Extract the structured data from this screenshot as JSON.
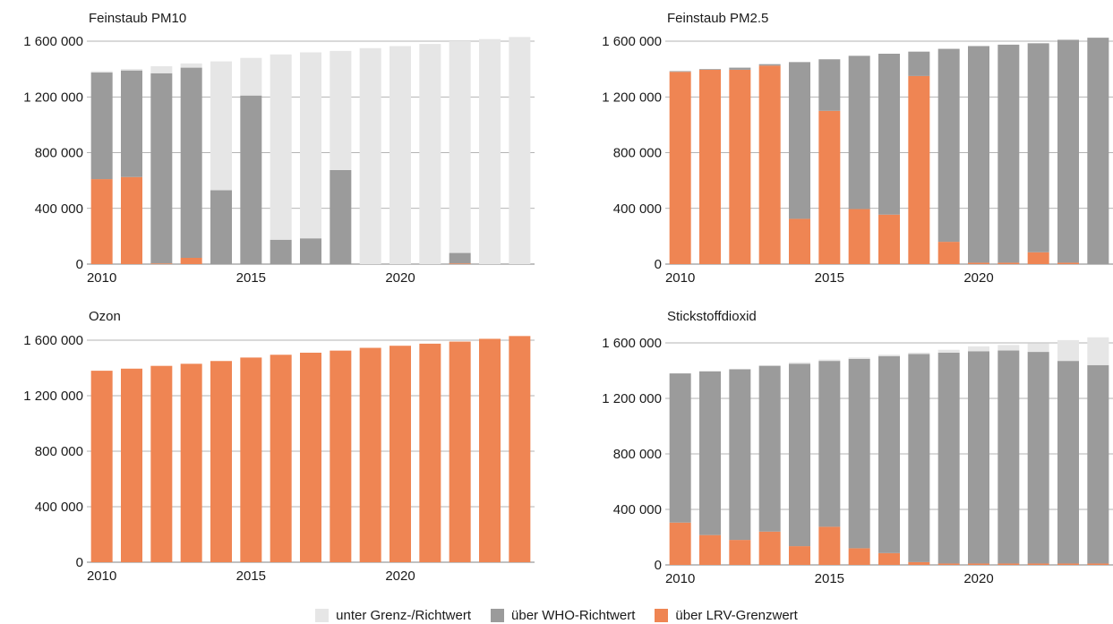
{
  "colors": {
    "below": "#e6e6e6",
    "who": "#9b9b9b",
    "lrv": "#ef8553",
    "axis": "#9a9a9a"
  },
  "legend": [
    {
      "key": "below",
      "label": "unter Grenz-/Richtwert"
    },
    {
      "key": "who",
      "label": "über WHO-Richtwert"
    },
    {
      "key": "lrv",
      "label": "über LRV-Grenzwert"
    }
  ],
  "chart_data": [
    {
      "type": "bar",
      "stacked": true,
      "title": "Feinstaub PM10",
      "categories": [
        2010,
        2011,
        2012,
        2013,
        2014,
        2015,
        2016,
        2017,
        2018,
        2019,
        2020,
        2021,
        2022,
        2023,
        2024
      ],
      "x_tick_labels": [
        "2010",
        "2015",
        "2020"
      ],
      "y_tick_labels": [
        "0",
        "400 000",
        "800 000",
        "1 200 000",
        "1 600 000"
      ],
      "ylim": [
        0,
        1600000
      ],
      "series": [
        {
          "key": "lrv",
          "values": [
            610000,
            625000,
            5000,
            45000,
            0,
            0,
            0,
            0,
            0,
            0,
            0,
            0,
            5000,
            0,
            0
          ]
        },
        {
          "key": "who",
          "values": [
            765000,
            765000,
            1365000,
            1365000,
            530000,
            1210000,
            175000,
            185000,
            675000,
            0,
            0,
            0,
            75000,
            0,
            0
          ]
        },
        {
          "key": "below",
          "values": [
            10000,
            10000,
            50000,
            30000,
            925000,
            270000,
            1330000,
            1335000,
            855000,
            1550000,
            1565000,
            1580000,
            1520000,
            1615000,
            1630000
          ]
        }
      ]
    },
    {
      "type": "bar",
      "stacked": true,
      "title": "Feinstaub PM2.5",
      "categories": [
        2010,
        2011,
        2012,
        2013,
        2014,
        2015,
        2016,
        2017,
        2018,
        2019,
        2020,
        2021,
        2022,
        2023,
        2024
      ],
      "x_tick_labels": [
        "2010",
        "2015",
        "2020"
      ],
      "y_tick_labels": [
        "0",
        "400 000",
        "800 000",
        "1 200 000",
        "1 600 000"
      ],
      "ylim": [
        0,
        1600000
      ],
      "series": [
        {
          "key": "lrv",
          "values": [
            1380000,
            1395000,
            1395000,
            1425000,
            325000,
            1100000,
            395000,
            355000,
            1350000,
            160000,
            10000,
            10000,
            85000,
            10000,
            0
          ]
        },
        {
          "key": "who",
          "values": [
            5000,
            5000,
            15000,
            10000,
            1125000,
            370000,
            1100000,
            1155000,
            175000,
            1385000,
            1555000,
            1565000,
            1500000,
            1600000,
            1625000
          ]
        },
        {
          "key": "below",
          "values": [
            0,
            0,
            0,
            0,
            0,
            0,
            0,
            0,
            0,
            0,
            0,
            0,
            0,
            0,
            0
          ]
        }
      ]
    },
    {
      "type": "bar",
      "stacked": true,
      "title": "Ozon",
      "categories": [
        2010,
        2011,
        2012,
        2013,
        2014,
        2015,
        2016,
        2017,
        2018,
        2019,
        2020,
        2021,
        2022,
        2023,
        2024
      ],
      "x_tick_labels": [
        "2010",
        "2015",
        "2020"
      ],
      "y_tick_labels": [
        "0",
        "400 000",
        "800 000",
        "1 200 000",
        "1 600 000"
      ],
      "ylim": [
        0,
        1600000
      ],
      "series": [
        {
          "key": "lrv",
          "values": [
            1380000,
            1395000,
            1415000,
            1430000,
            1450000,
            1475000,
            1495000,
            1510000,
            1525000,
            1545000,
            1560000,
            1575000,
            1590000,
            1610000,
            1630000
          ]
        },
        {
          "key": "who",
          "values": [
            0,
            0,
            0,
            0,
            0,
            0,
            0,
            0,
            0,
            0,
            0,
            0,
            0,
            0,
            0
          ]
        },
        {
          "key": "below",
          "values": [
            0,
            0,
            0,
            0,
            0,
            0,
            0,
            0,
            0,
            0,
            0,
            0,
            0,
            0,
            0
          ]
        }
      ]
    },
    {
      "type": "bar",
      "stacked": true,
      "title": "Stickstoffdioxid",
      "categories": [
        2010,
        2011,
        2012,
        2013,
        2014,
        2015,
        2016,
        2017,
        2018,
        2019,
        2020,
        2021,
        2022,
        2023,
        2024
      ],
      "x_tick_labels": [
        "2010",
        "2015",
        "2020"
      ],
      "y_tick_labels": [
        "0",
        "400 000",
        "800 000",
        "1 200 000",
        "1 600 000"
      ],
      "ylim": [
        0,
        1600000
      ],
      "series": [
        {
          "key": "lrv",
          "values": [
            305000,
            215000,
            180000,
            240000,
            135000,
            275000,
            120000,
            85000,
            20000,
            10000,
            10000,
            10000,
            10000,
            10000,
            10000
          ]
        },
        {
          "key": "who",
          "values": [
            1075000,
            1180000,
            1230000,
            1195000,
            1315000,
            1195000,
            1365000,
            1420000,
            1500000,
            1520000,
            1530000,
            1535000,
            1525000,
            1460000,
            1430000
          ]
        },
        {
          "key": "below",
          "values": [
            0,
            0,
            0,
            0,
            10000,
            10000,
            10000,
            10000,
            10000,
            20000,
            35000,
            40000,
            60000,
            150000,
            200000
          ]
        }
      ]
    }
  ]
}
